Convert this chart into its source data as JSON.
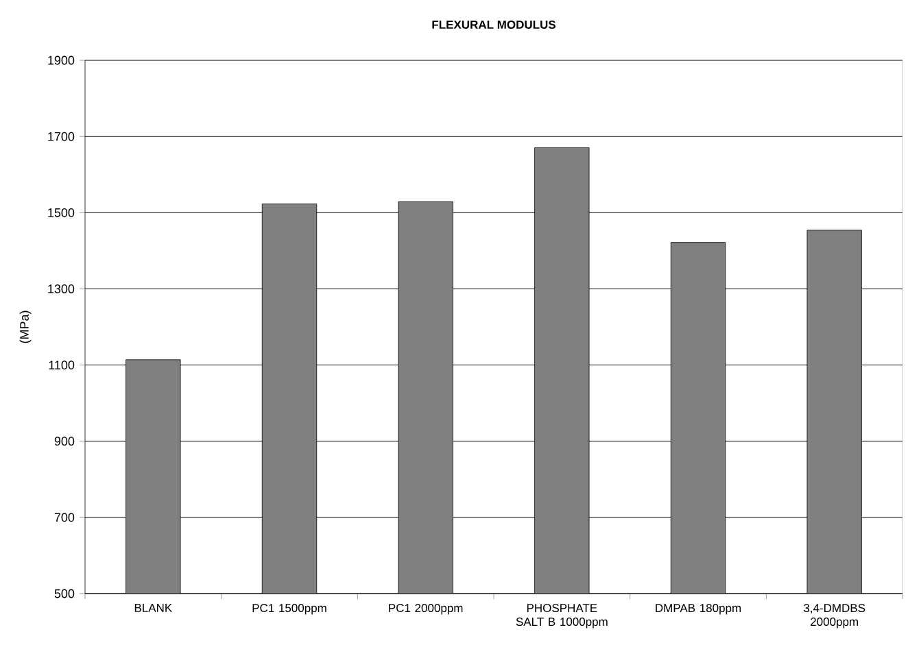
{
  "chart_data": {
    "type": "bar",
    "title": "FLEXURAL MODULUS",
    "ylabel": "(MPa)",
    "categories": [
      "BLANK",
      "PC1 1500ppm",
      "PC1 2000ppm",
      "PHOSPHATE SALT B 1000ppm",
      "DMPAB 180ppm",
      "3,4-DMDBS 2000ppm"
    ],
    "values": [
      1114,
      1523,
      1529,
      1671,
      1422,
      1454
    ],
    "color": "#808080",
    "ylim": [
      500,
      1900
    ],
    "yticks": [
      500,
      700,
      900,
      1100,
      1300,
      1500,
      1700,
      1900
    ],
    "grid": "y"
  }
}
